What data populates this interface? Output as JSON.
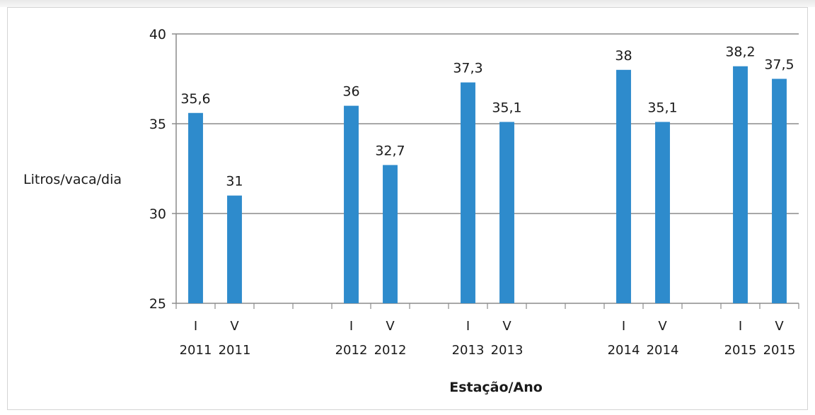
{
  "chart_data": {
    "type": "bar",
    "ylabel": "Litros/vaca/dia",
    "xlabel": "Estação/Ano",
    "ylim": [
      25,
      40
    ],
    "yticks": [
      25,
      30,
      35,
      40
    ],
    "grid": true,
    "bar_color": "#2e8bcc",
    "groups": [
      {
        "bars": [
          {
            "season": "I",
            "year": "2011",
            "value": 35.6,
            "label": "35,6"
          },
          {
            "season": "V",
            "year": "2011",
            "value": 31,
            "label": "31"
          }
        ]
      },
      {
        "bars": [
          {
            "season": "I",
            "year": "2012",
            "value": 36,
            "label": "36"
          },
          {
            "season": "V",
            "year": "2012",
            "value": 32.7,
            "label": "32,7"
          }
        ]
      },
      {
        "bars": [
          {
            "season": "I",
            "year": "2013",
            "value": 37.3,
            "label": "37,3"
          },
          {
            "season": "V",
            "year": "2013",
            "value": 35.1,
            "label": "35,1"
          }
        ]
      },
      {
        "bars": [
          {
            "season": "I",
            "year": "2014",
            "value": 38,
            "label": "38"
          },
          {
            "season": "V",
            "year": "2014",
            "value": 35.1,
            "label": "35,1"
          }
        ]
      },
      {
        "bars": [
          {
            "season": "I",
            "year": "2015",
            "value": 38.2,
            "label": "38,2"
          },
          {
            "season": "V",
            "year": "2015",
            "value": 37.5,
            "label": "37,5"
          }
        ]
      }
    ]
  }
}
